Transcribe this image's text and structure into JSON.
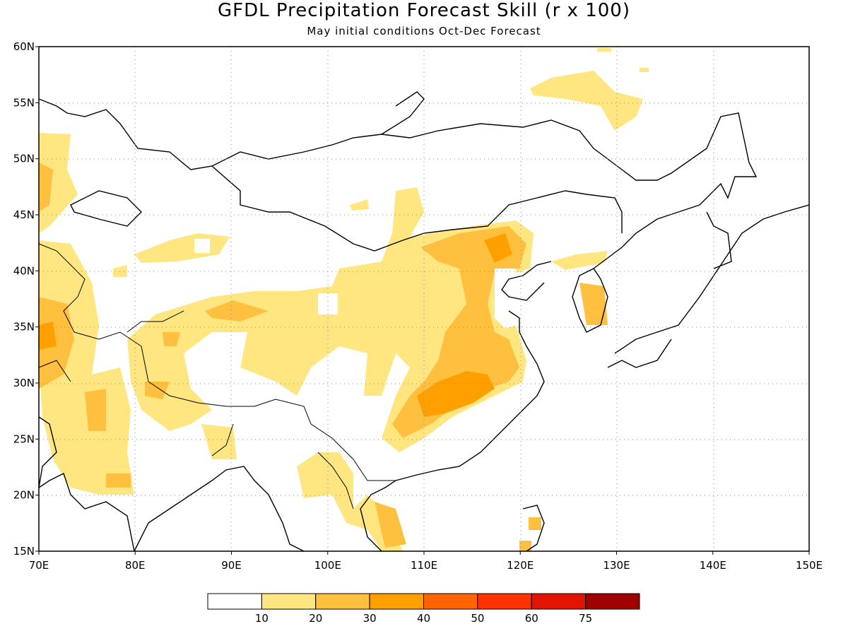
{
  "title": "GFDL Precipitation Forecast Skill (r x 100)",
  "subtitle": "May initial conditions  Oct-Dec Forecast",
  "map": {
    "lon_range": [
      70,
      150
    ],
    "lat_range": [
      15,
      60
    ],
    "lon_ticks": [
      "70E",
      "80E",
      "90E",
      "100E",
      "110E",
      "120E",
      "130E",
      "140E",
      "150E"
    ],
    "lat_ticks": [
      "15N",
      "20N",
      "25N",
      "30N",
      "35N",
      "40N",
      "45N",
      "50N",
      "55N",
      "60N"
    ],
    "grid": "dotted"
  },
  "colorbar": {
    "labels": [
      "10",
      "20",
      "30",
      "40",
      "50",
      "60",
      "75"
    ],
    "colors": [
      "#ffffff",
      "#ffe680",
      "#ffc040",
      "#ffa000",
      "#ff6400",
      "#ff3200",
      "#e01400",
      "#a00000"
    ]
  }
}
